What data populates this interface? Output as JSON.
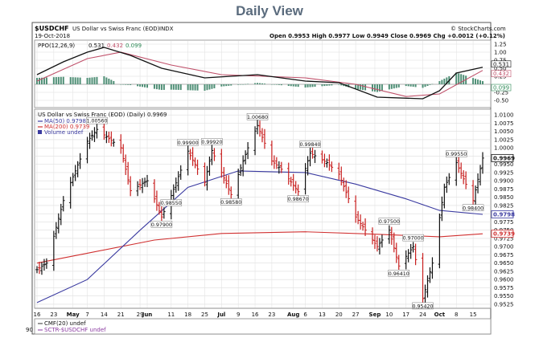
{
  "page_title": "Daily View",
  "header": {
    "symbol": "$USDCHF",
    "description": "US Dollar vs Swiss Franc (EOD)",
    "exchange": "INDX",
    "watermark": "© StockCharts.com",
    "date": "19-Oct-2018",
    "ohlc_text": "Open 0.9953  High 0.9977  Low 0.9949  Close 0.9969  Chg +0.0012 (+0.12%)"
  },
  "ppo_panel": {
    "legend_label": "PPO(12,26,9)",
    "ppo_value": "0.531",
    "signal_value": "0.432",
    "hist_value": "0.099",
    "tick_labels": [
      "1.25",
      "1.00",
      "0.75",
      "0.50",
      "0.25",
      "-0.25",
      "-0.50"
    ],
    "current_tags": [
      "0.531",
      "0.432",
      "0.099"
    ]
  },
  "price_panel": {
    "legend_title": "US Dollar vs Swiss Franc (EOD) (Daily) 0.9969",
    "ma50_label": "MA(50) 0.9798",
    "ma200_label": "MA(200) 0.9739",
    "volume_label": "Volume undef",
    "last_price_tag": "0.9969",
    "ma50_tag": "0.9798",
    "ma200_tag": "0.9739",
    "tick_labels": [
      "1.0100",
      "1.0075",
      "1.0050",
      "1.0025",
      "1.0000",
      "0.9975",
      "0.9950",
      "0.9925",
      "0.9900",
      "0.9875",
      "0.9850",
      "0.9825",
      "0.9800",
      "0.9775",
      "0.9750",
      "0.9725",
      "0.9700",
      "0.9675",
      "0.9650",
      "0.9625",
      "0.9600",
      "0.9575",
      "0.9550",
      "0.9525"
    ],
    "annotations": [
      "1.00560",
      "1.00680",
      "0.99900",
      "0.99920",
      "0.99840",
      "0.99550",
      "0.98550",
      "0.98580",
      "0.98670",
      "0.98400",
      "0.97900",
      "0.97500",
      "0.97000",
      "0.96410",
      "0.95420"
    ]
  },
  "x_axis": {
    "labels": [
      "16",
      "23",
      "May",
      "7",
      "14",
      "21",
      "29",
      "Jun",
      "11",
      "18",
      "25",
      "Jul",
      "9",
      "16",
      "23",
      "Aug",
      "6",
      "13",
      "20",
      "27",
      "Sep",
      "10",
      "17",
      "24",
      "Oct",
      "8",
      "15"
    ]
  },
  "cmf_panel": {
    "cmf_label": "CMF(20) undef",
    "sctr_label": "SCTR-$USDCHF undef",
    "tick_label": "90"
  },
  "chart_data": {
    "type": "line",
    "title": "$USDCHF US Dollar vs Swiss Franc (EOD) INDX — Daily",
    "x_range": [
      "2018-04-16",
      "2018-10-19"
    ],
    "price": {
      "ylim": [
        0.9515,
        1.0115
      ],
      "key_points": [
        {
          "x": "2018-04-16",
          "y": 0.963
        },
        {
          "x": "2018-04-20",
          "y": 0.965
        },
        {
          "x": "2018-04-27",
          "y": 0.984
        },
        {
          "x": "2018-05-07",
          "y": 1.002
        },
        {
          "x": "2018-05-11",
          "y": 1.0056
        },
        {
          "x": "2018-05-21",
          "y": 1.0
        },
        {
          "x": "2018-05-25",
          "y": 0.987
        },
        {
          "x": "2018-06-01",
          "y": 0.99
        },
        {
          "x": "2018-06-07",
          "y": 0.979
        },
        {
          "x": "2018-06-11",
          "y": 0.9855
        },
        {
          "x": "2018-06-18",
          "y": 0.999
        },
        {
          "x": "2018-06-25",
          "y": 0.9895
        },
        {
          "x": "2018-06-28",
          "y": 0.9992
        },
        {
          "x": "2018-07-06",
          "y": 0.9858
        },
        {
          "x": "2018-07-13",
          "y": 1.0
        },
        {
          "x": "2018-07-17",
          "y": 1.0068
        },
        {
          "x": "2018-07-23",
          "y": 0.996
        },
        {
          "x": "2018-07-27",
          "y": 0.9935
        },
        {
          "x": "2018-08-03",
          "y": 0.9867
        },
        {
          "x": "2018-08-08",
          "y": 0.9984
        },
        {
          "x": "2018-08-15",
          "y": 0.9955
        },
        {
          "x": "2018-08-20",
          "y": 0.992
        },
        {
          "x": "2018-08-27",
          "y": 0.979
        },
        {
          "x": "2018-09-05",
          "y": 0.97
        },
        {
          "x": "2018-09-10",
          "y": 0.975
        },
        {
          "x": "2018-09-14",
          "y": 0.9641
        },
        {
          "x": "2018-09-20",
          "y": 0.97
        },
        {
          "x": "2018-09-24",
          "y": 0.9542
        },
        {
          "x": "2018-09-28",
          "y": 0.965
        },
        {
          "x": "2018-10-03",
          "y": 0.988
        },
        {
          "x": "2018-10-08",
          "y": 0.9955
        },
        {
          "x": "2018-10-15",
          "y": 0.984
        },
        {
          "x": "2018-10-19",
          "y": 0.9969
        }
      ],
      "ma50": [
        {
          "x": "2018-04-16",
          "y": 0.953
        },
        {
          "x": "2018-05-07",
          "y": 0.96
        },
        {
          "x": "2018-05-29",
          "y": 0.975
        },
        {
          "x": "2018-06-18",
          "y": 0.988
        },
        {
          "x": "2018-07-09",
          "y": 0.993
        },
        {
          "x": "2018-08-06",
          "y": 0.9925
        },
        {
          "x": "2018-08-27",
          "y": 0.989
        },
        {
          "x": "2018-09-17",
          "y": 0.9845
        },
        {
          "x": "2018-10-01",
          "y": 0.981
        },
        {
          "x": "2018-10-19",
          "y": 0.9798
        }
      ],
      "ma200": [
        {
          "x": "2018-04-16",
          "y": 0.965
        },
        {
          "x": "2018-05-07",
          "y": 0.968
        },
        {
          "x": "2018-06-04",
          "y": 0.972
        },
        {
          "x": "2018-07-02",
          "y": 0.974
        },
        {
          "x": "2018-08-06",
          "y": 0.9745
        },
        {
          "x": "2018-09-03",
          "y": 0.9738
        },
        {
          "x": "2018-10-01",
          "y": 0.973
        },
        {
          "x": "2018-10-19",
          "y": 0.9739
        }
      ]
    },
    "ppo": {
      "ylim": [
        -0.7,
        1.35
      ],
      "ppo_line": [
        {
          "x": "2018-04-16",
          "y": 0.3
        },
        {
          "x": "2018-04-27",
          "y": 0.7
        },
        {
          "x": "2018-05-07",
          "y": 1.0
        },
        {
          "x": "2018-05-14",
          "y": 1.15
        },
        {
          "x": "2018-05-25",
          "y": 0.9
        },
        {
          "x": "2018-06-07",
          "y": 0.5
        },
        {
          "x": "2018-06-25",
          "y": 0.2
        },
        {
          "x": "2018-07-17",
          "y": 0.3
        },
        {
          "x": "2018-08-06",
          "y": 0.1
        },
        {
          "x": "2018-08-20",
          "y": 0.05
        },
        {
          "x": "2018-09-05",
          "y": -0.4
        },
        {
          "x": "2018-09-24",
          "y": -0.45
        },
        {
          "x": "2018-10-01",
          "y": -0.2
        },
        {
          "x": "2018-10-08",
          "y": 0.35
        },
        {
          "x": "2018-10-19",
          "y": 0.531
        }
      ],
      "signal_line": [
        {
          "x": "2018-04-16",
          "y": 0.1
        },
        {
          "x": "2018-05-07",
          "y": 0.8
        },
        {
          "x": "2018-05-21",
          "y": 1.0
        },
        {
          "x": "2018-06-11",
          "y": 0.6
        },
        {
          "x": "2018-07-02",
          "y": 0.3
        },
        {
          "x": "2018-08-06",
          "y": 0.2
        },
        {
          "x": "2018-08-27",
          "y": 0.0
        },
        {
          "x": "2018-09-17",
          "y": -0.38
        },
        {
          "x": "2018-10-01",
          "y": -0.3
        },
        {
          "x": "2018-10-19",
          "y": 0.432
        }
      ]
    },
    "cmf": {
      "value": null
    }
  }
}
